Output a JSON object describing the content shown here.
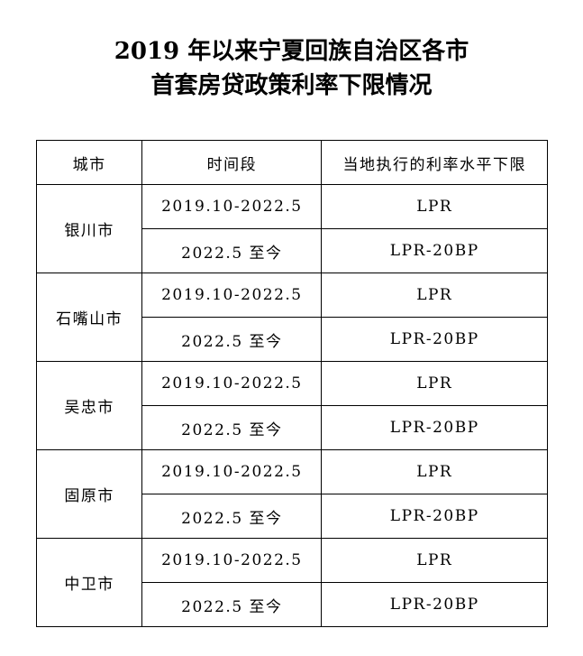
{
  "title": [
    "2019 年以来宁夏回族自治区各市",
    "首套房贷政策利率下限情况"
  ],
  "table": {
    "headers": [
      "城市",
      "时间段",
      "当地执行的利率水平下限"
    ],
    "cities": [
      {
        "name": "银川市",
        "rows": [
          [
            "2019.10-2022.5",
            "LPR"
          ],
          [
            "2022.5 至今",
            "LPR-20BP"
          ]
        ]
      },
      {
        "name": "石嘴山市",
        "rows": [
          [
            "2019.10-2022.5",
            "LPR"
          ],
          [
            "2022.5 至今",
            "LPR-20BP"
          ]
        ]
      },
      {
        "name": "吴忠市",
        "rows": [
          [
            "2019.10-2022.5",
            "LPR"
          ],
          [
            "2022.5 至今",
            "LPR-20BP"
          ]
        ]
      },
      {
        "name": "固原市",
        "rows": [
          [
            "2019.10-2022.5",
            "LPR"
          ],
          [
            "2022.5 至今",
            "LPR-20BP"
          ]
        ]
      },
      {
        "name": "中卫市",
        "rows": [
          [
            "2019.10-2022.5",
            "LPR"
          ],
          [
            "2022.5 至今",
            "LPR-20BP"
          ]
        ]
      }
    ]
  }
}
